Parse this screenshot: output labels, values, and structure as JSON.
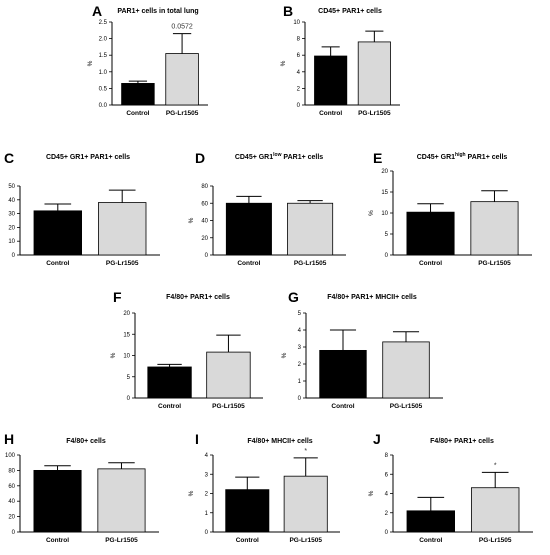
{
  "colors": {
    "control": "#000000",
    "treated": "#d9d9d9",
    "axis": "#000000"
  },
  "chart_data": [
    {
      "panel": "A",
      "type": "bar",
      "title": "PAR1+ cells in total lung",
      "categories": [
        "Control",
        "PG-Lr1505"
      ],
      "values": [
        0.65,
        1.55
      ],
      "errors": [
        0.07,
        0.6
      ],
      "ylabel": "%",
      "ylim": [
        0,
        2.5
      ],
      "yticks": [
        "0.0",
        "0.5",
        "1.0",
        "1.5",
        "2.0",
        "2.5"
      ],
      "annotation": "0.0572"
    },
    {
      "panel": "B",
      "type": "bar",
      "title": "CD45+ PAR1+ cells",
      "categories": [
        "Control",
        "PG-Lr1505"
      ],
      "values": [
        5.9,
        7.6
      ],
      "errors": [
        1.1,
        1.3
      ],
      "ylabel": "%",
      "ylim": [
        0,
        10
      ],
      "yticks": [
        "0",
        "2",
        "4",
        "6",
        "8",
        "10"
      ]
    },
    {
      "panel": "C",
      "type": "bar",
      "title": "CD45+ GR1+ PAR1+ cells",
      "categories": [
        "Control",
        "PG-Lr1505"
      ],
      "values": [
        32,
        38
      ],
      "errors": [
        5,
        9
      ],
      "ylabel": "%",
      "ylim": [
        0,
        50
      ],
      "yticks": [
        "0",
        "10",
        "20",
        "30",
        "40",
        "50"
      ]
    },
    {
      "panel": "D",
      "type": "bar",
      "title_parts": [
        "CD45+ GR1",
        "low",
        " PAR1+ cells"
      ],
      "categories": [
        "Control",
        "PG-Lr1505"
      ],
      "values": [
        60,
        60
      ],
      "errors": [
        8,
        3
      ],
      "ylabel": "%",
      "ylim": [
        0,
        80
      ],
      "yticks": [
        "0",
        "20",
        "40",
        "60",
        "80"
      ]
    },
    {
      "panel": "E",
      "type": "bar",
      "title_parts": [
        "CD45+ GR1",
        "high",
        " PAR1+ cells"
      ],
      "categories": [
        "Control",
        "PG-Lr1505"
      ],
      "values": [
        10.2,
        12.7
      ],
      "errors": [
        2.0,
        2.6
      ],
      "ylabel": "%",
      "ylim": [
        0,
        20
      ],
      "yticks": [
        "0",
        "5",
        "10",
        "15",
        "20"
      ]
    },
    {
      "panel": "F",
      "type": "bar",
      "title": "F4/80+ PAR1+ cells",
      "categories": [
        "Control",
        "PG-Lr1505"
      ],
      "values": [
        7.3,
        10.8
      ],
      "errors": [
        0.6,
        4.0
      ],
      "ylabel": "%",
      "ylim": [
        0,
        20
      ],
      "yticks": [
        "0",
        "5",
        "10",
        "15",
        "20"
      ]
    },
    {
      "panel": "G",
      "type": "bar",
      "title": "F4/80+ PAR1+ MHCII+ cells",
      "categories": [
        "Control",
        "PG-Lr1505"
      ],
      "values": [
        2.8,
        3.3
      ],
      "errors": [
        1.2,
        0.6
      ],
      "ylabel": "%",
      "ylim": [
        0,
        5
      ],
      "yticks": [
        "0",
        "1",
        "2",
        "3",
        "4",
        "5"
      ]
    },
    {
      "panel": "H",
      "type": "bar",
      "title": "F4/80+ cells",
      "categories": [
        "Control",
        "PG-Lr1505"
      ],
      "values": [
        80,
        82
      ],
      "errors": [
        6,
        8
      ],
      "ylabel": "%",
      "ylim": [
        0,
        100
      ],
      "yticks": [
        "0",
        "20",
        "40",
        "60",
        "80",
        "100"
      ]
    },
    {
      "panel": "I",
      "type": "bar",
      "title": "F4/80+ MHCII+ cells",
      "categories": [
        "Control",
        "PG-Lr1505"
      ],
      "values": [
        2.2,
        2.9
      ],
      "errors": [
        0.65,
        0.95
      ],
      "ylabel": "%",
      "ylim": [
        0,
        4
      ],
      "yticks": [
        "0",
        "1",
        "2",
        "3",
        "4"
      ],
      "annotation": "*"
    },
    {
      "panel": "J",
      "type": "bar",
      "title": "F4/80+ PAR1+ cells",
      "categories": [
        "Control",
        "PG-Lr1505"
      ],
      "values": [
        2.2,
        4.6
      ],
      "errors": [
        1.4,
        1.6
      ],
      "ylabel": "%",
      "ylim": [
        0,
        8
      ],
      "yticks": [
        "0",
        "2",
        "4",
        "6",
        "8"
      ],
      "annotation": "*"
    }
  ]
}
